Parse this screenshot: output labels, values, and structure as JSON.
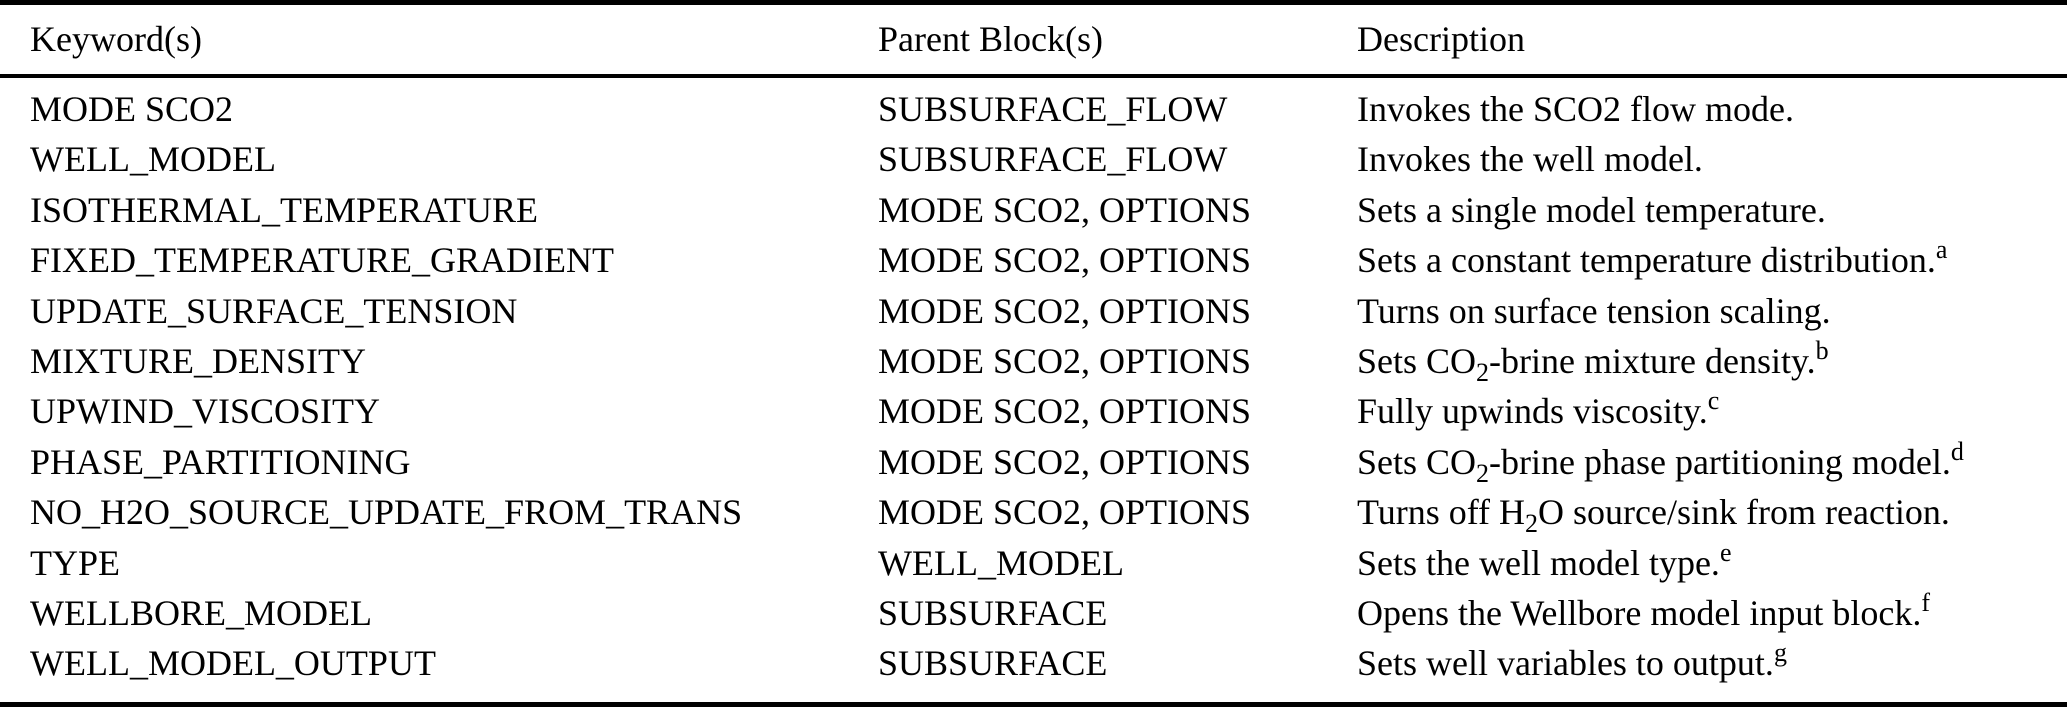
{
  "colors": {
    "text": "#000000",
    "background": "#ffffff",
    "rule": "#000000"
  },
  "table": {
    "headers": [
      {
        "label": "Keyword(s)"
      },
      {
        "label": "Parent Block(s)"
      },
      {
        "label": "Description"
      }
    ],
    "rows": [
      {
        "keyword": "MODE SCO2",
        "parent": "SUBSURFACE_FLOW",
        "description": [
          {
            "text": "Invokes the SCO2 flow mode."
          }
        ]
      },
      {
        "keyword": "WELL_MODEL",
        "parent": "SUBSURFACE_FLOW",
        "description": [
          {
            "text": "Invokes the well model."
          }
        ]
      },
      {
        "keyword": "ISOTHERMAL_TEMPERATURE",
        "parent": "MODE SCO2, OPTIONS",
        "description": [
          {
            "text": "Sets a single model temperature."
          }
        ]
      },
      {
        "keyword": "FIXED_TEMPERATURE_GRADIENT",
        "parent": "MODE SCO2, OPTIONS",
        "description": [
          {
            "text": "Sets a constant temperature distribution."
          },
          {
            "sup": "a"
          }
        ]
      },
      {
        "keyword": "UPDATE_SURFACE_TENSION",
        "parent": "MODE SCO2, OPTIONS",
        "description": [
          {
            "text": "Turns on surface tension scaling."
          }
        ]
      },
      {
        "keyword": "MIXTURE_DENSITY",
        "parent": "MODE SCO2, OPTIONS",
        "description": [
          {
            "text": "Sets CO"
          },
          {
            "sub": "2"
          },
          {
            "text": "-brine mixture density."
          },
          {
            "sup": "b"
          }
        ]
      },
      {
        "keyword": "UPWIND_VISCOSITY",
        "parent": "MODE SCO2, OPTIONS",
        "description": [
          {
            "text": "Fully upwinds viscosity."
          },
          {
            "sup": "c"
          }
        ]
      },
      {
        "keyword": "PHASE_PARTITIONING",
        "parent": "MODE SCO2, OPTIONS",
        "description": [
          {
            "text": "Sets CO"
          },
          {
            "sub": "2"
          },
          {
            "text": "-brine phase partitioning model."
          },
          {
            "sup": "d"
          }
        ]
      },
      {
        "keyword": "NO_H2O_SOURCE_UPDATE_FROM_TRANS",
        "parent": "MODE SCO2, OPTIONS",
        "description": [
          {
            "text": "Turns off H"
          },
          {
            "sub": "2"
          },
          {
            "text": "O source/sink from reaction."
          }
        ]
      },
      {
        "keyword": "TYPE",
        "parent": "WELL_MODEL",
        "description": [
          {
            "text": "Sets the well model type."
          },
          {
            "sup": "e"
          }
        ]
      },
      {
        "keyword": "WELLBORE_MODEL",
        "parent": "SUBSURFACE",
        "description": [
          {
            "text": "Opens the Wellbore model input block."
          },
          {
            "sup": "f"
          }
        ]
      },
      {
        "keyword": "WELL_MODEL_OUTPUT",
        "parent": "SUBSURFACE",
        "description": [
          {
            "text": "Sets well variables to output."
          },
          {
            "sup": "g"
          }
        ]
      }
    ]
  }
}
